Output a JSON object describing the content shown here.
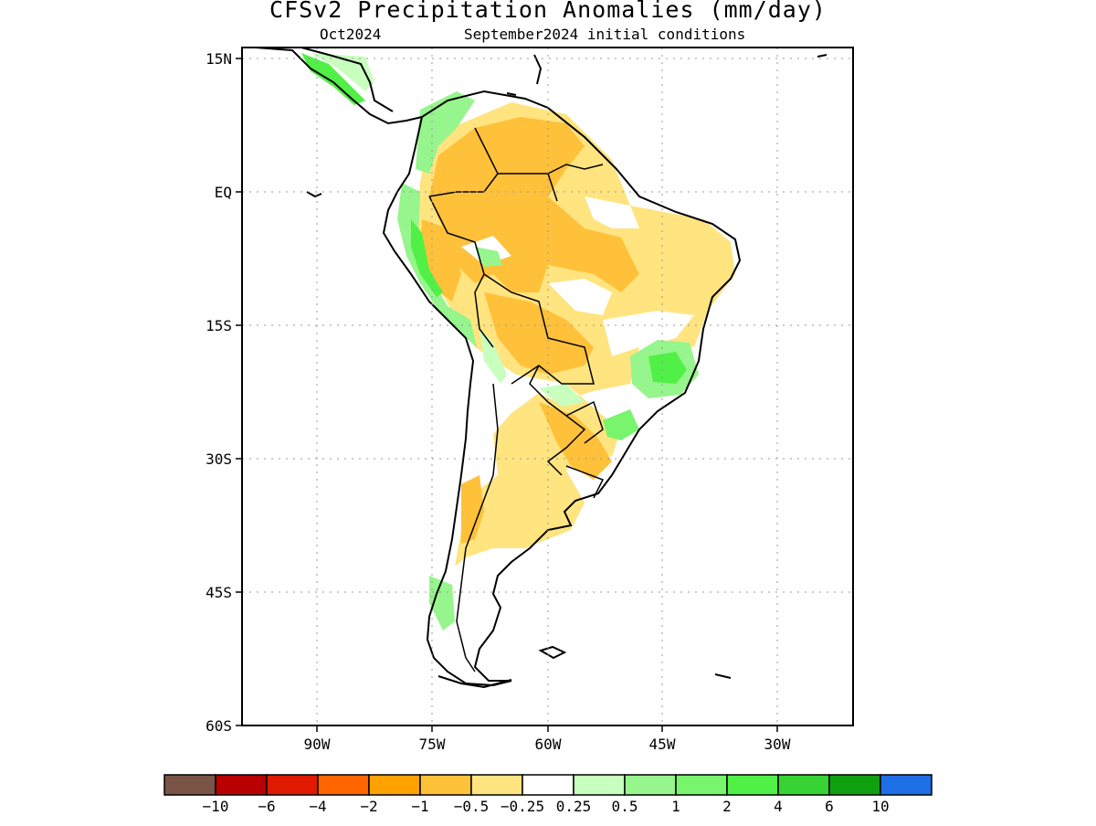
{
  "title": "CFSv2 Precipitation Anomalies (mm/day)",
  "valid_month": "Oct2024",
  "initial_conditions": "September2024 initial conditions",
  "lat_labels": [
    "15N",
    "EQ",
    "15S",
    "30S",
    "45S",
    "60S"
  ],
  "lon_labels": [
    "90W",
    "75W",
    "60W",
    "45W",
    "30W"
  ],
  "colorbar": {
    "colors": [
      "#7a5447",
      "#b80000",
      "#e01a00",
      "#ff6600",
      "#ffa200",
      "#ffc13a",
      "#ffe47f",
      "#ffffff",
      "#c8ffbe",
      "#96f58c",
      "#78f56d",
      "#50f046",
      "#37d233",
      "#0fa00f",
      "#1e6ee6"
    ],
    "labels": [
      "−10",
      "−6",
      "−4",
      "−2",
      "−1",
      "−0.5",
      "−0.25",
      "0.25",
      "0.5",
      "1",
      "2",
      "4",
      "6",
      "10"
    ]
  }
}
